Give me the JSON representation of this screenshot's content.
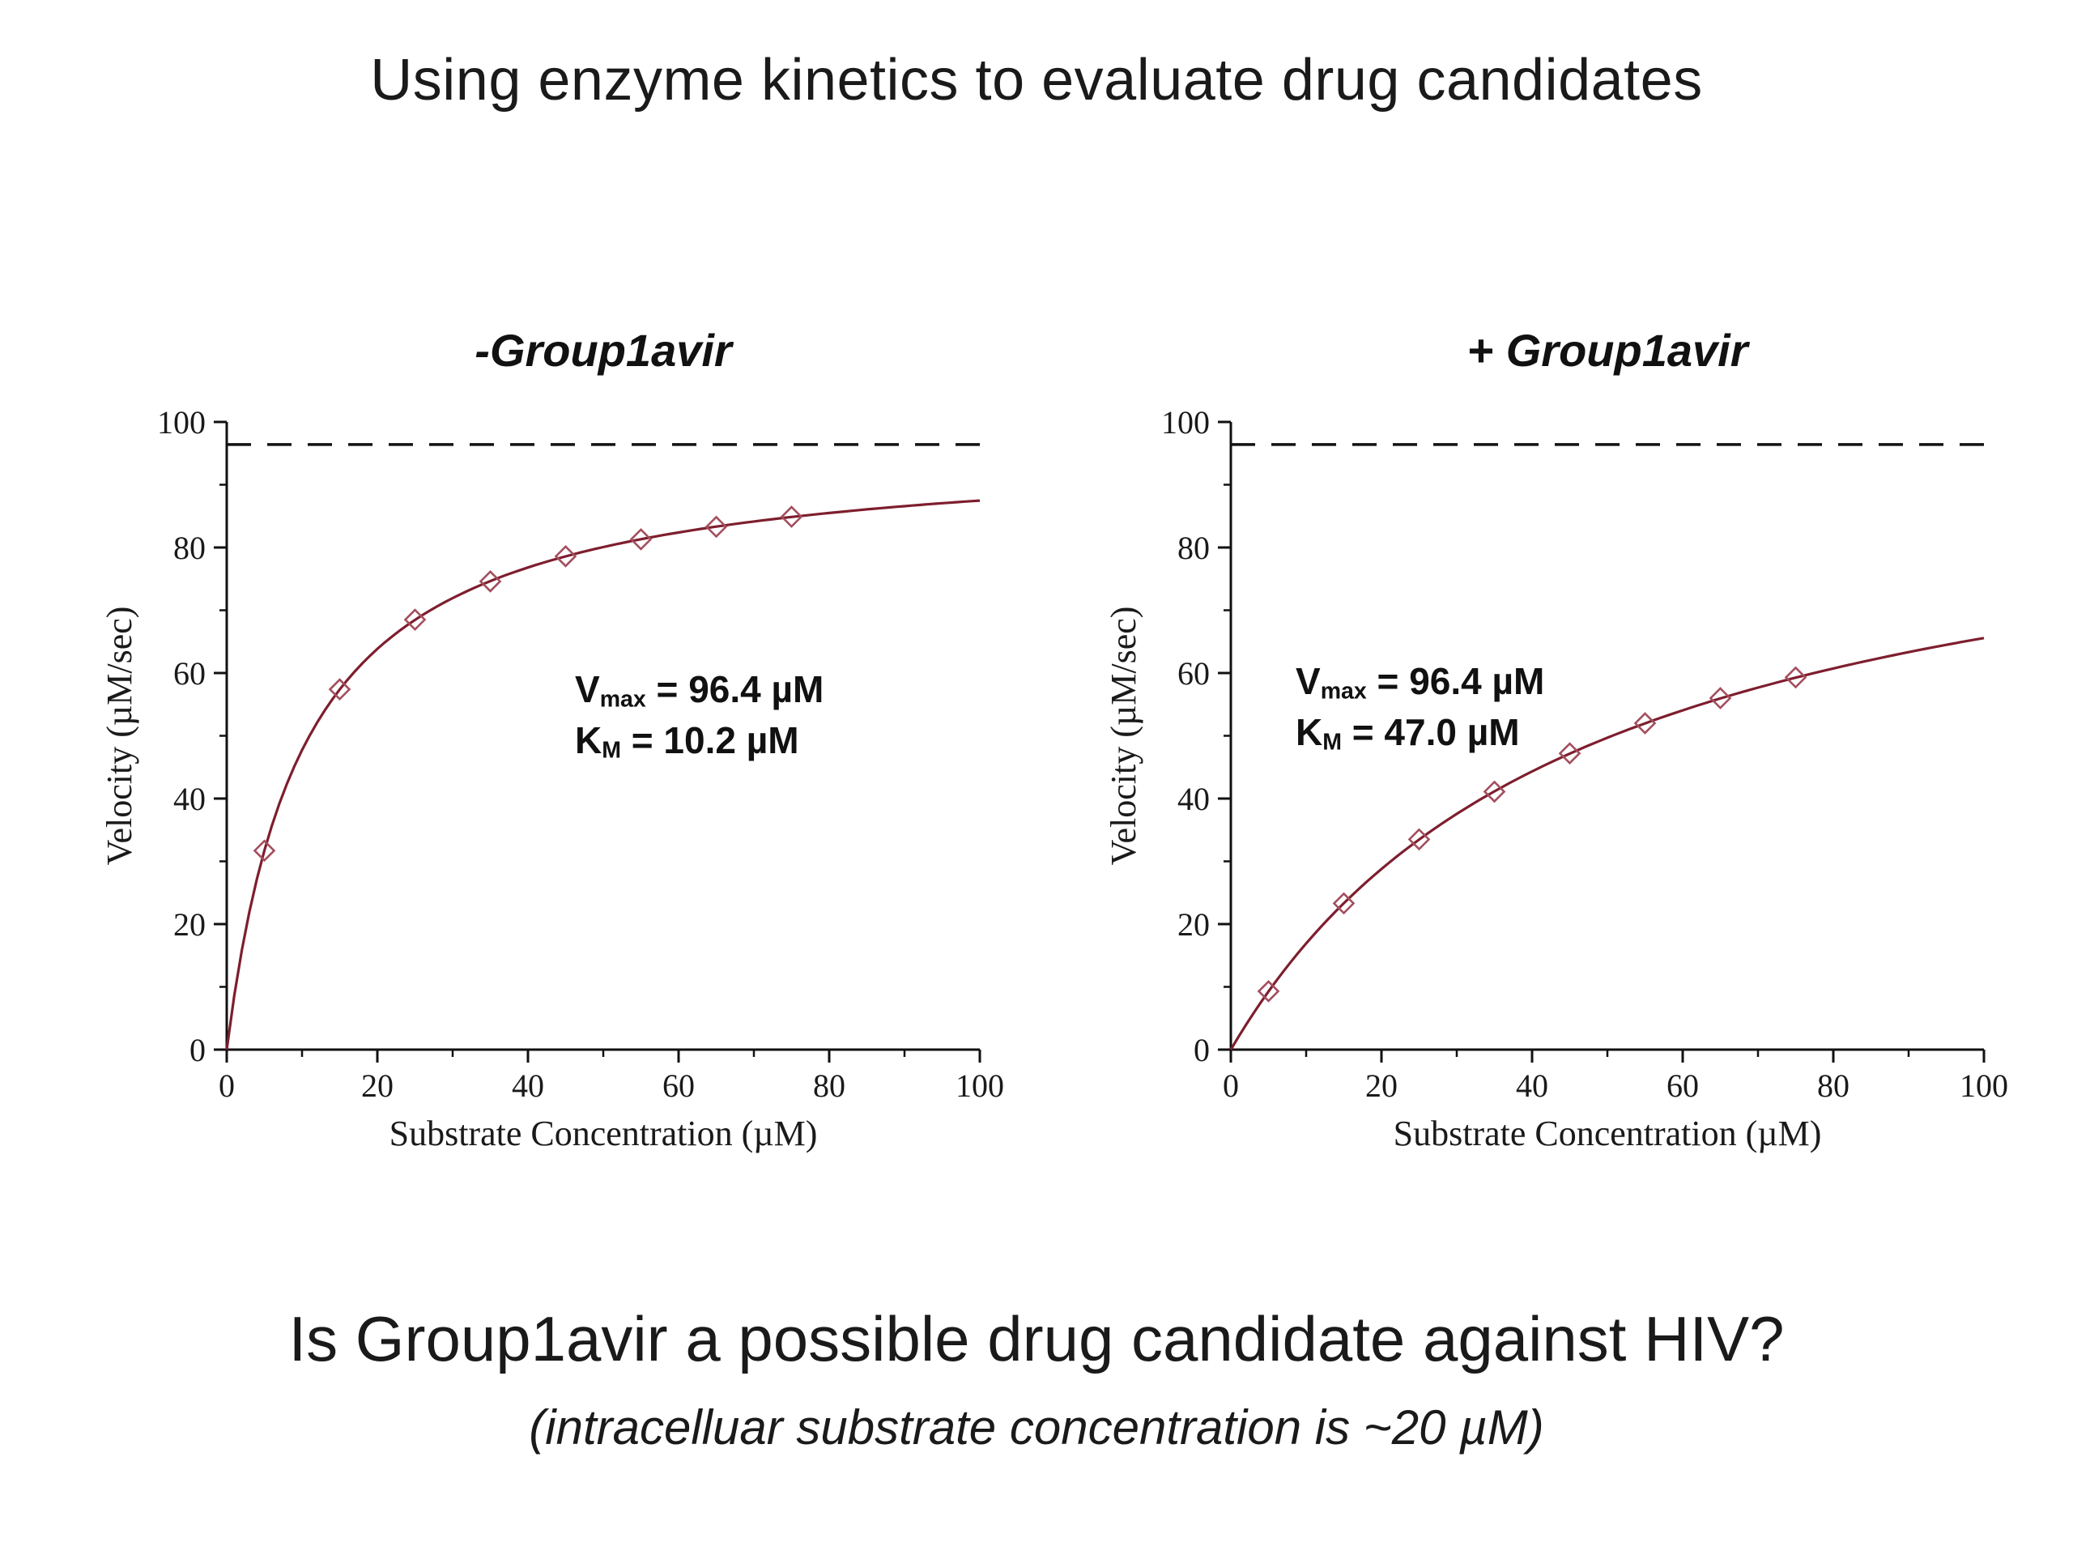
{
  "slide": {
    "title": "Using enzyme kinetics to evaluate drug candidates",
    "question": "Is Group1avir a possible drug candidate against HIV?",
    "note": "(intracelluar substrate concentration is ~20 µM)"
  },
  "colors": {
    "curve": "#7e1e2e",
    "marker": "#a34e5e",
    "dashed": "#111111",
    "axis": "#111111",
    "text": "#1a1a1a"
  },
  "chart_data": [
    {
      "type": "line",
      "title": "-Group1avir",
      "xlabel": "Substrate Concentration (µM)",
      "ylabel": "Velocity (µM/sec)",
      "xlim": [
        0,
        100
      ],
      "ylim": [
        0,
        100
      ],
      "xticks": [
        0,
        20,
        40,
        60,
        80,
        100
      ],
      "yticks": [
        0,
        20,
        40,
        60,
        80,
        100
      ],
      "minor_tick_step": 10,
      "vmax": 96.4,
      "km": 10.2,
      "dashed_y": 96.4,
      "points": {
        "x": [
          5,
          15,
          25,
          35,
          45,
          55,
          65,
          75
        ],
        "y": [
          31.7,
          57.4,
          68.5,
          74.6,
          78.6,
          81.3,
          83.3,
          84.9
        ]
      },
      "annotation": {
        "v_base": "V",
        "v_sub": "max",
        "v_rest": " = 96.4 µM",
        "k_base": "K",
        "k_sub": "M",
        "k_rest": " = 10.2 µM"
      }
    },
    {
      "type": "line",
      "title": "+ Group1avir",
      "xlabel": "Substrate Concentration (µM)",
      "ylabel": "Velocity (µM/sec)",
      "xlim": [
        0,
        100
      ],
      "ylim": [
        0,
        100
      ],
      "xticks": [
        0,
        20,
        40,
        60,
        80,
        100
      ],
      "yticks": [
        0,
        20,
        40,
        60,
        80,
        100
      ],
      "minor_tick_step": 10,
      "vmax": 96.4,
      "km": 47.0,
      "dashed_y": 96.4,
      "points": {
        "x": [
          5,
          15,
          25,
          35,
          45,
          55,
          65,
          75
        ],
        "y": [
          9.3,
          23.3,
          33.5,
          41.1,
          47.2,
          52.0,
          56.0,
          59.3
        ]
      },
      "annotation": {
        "v_base": "V",
        "v_sub": "max",
        "v_rest": " = 96.4 µM",
        "k_base": "K",
        "k_sub": "M",
        "k_rest": " = 47.0 µM"
      }
    }
  ]
}
